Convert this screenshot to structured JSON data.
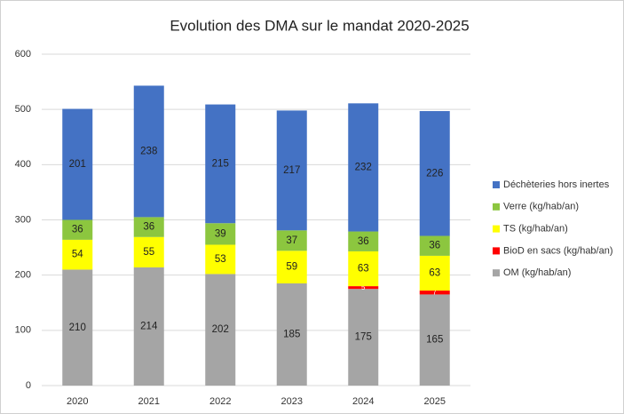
{
  "chart_data": {
    "type": "stacked_bar",
    "title": "Evolution des DMA sur le mandat 2020-2025",
    "categories": [
      "2020",
      "2021",
      "2022",
      "2023",
      "2024",
      "2025"
    ],
    "series": [
      {
        "name": "OM (kg/hab/an)",
        "color": "#a5a5a5",
        "values": [
          210,
          214,
          202,
          185,
          175,
          165
        ]
      },
      {
        "name": "BioD en sacs (kg/hab/an)",
        "color": "#ff0000",
        "values": [
          null,
          null,
          null,
          null,
          5,
          7
        ]
      },
      {
        "name": "TS  (kg/hab/an)",
        "color": "#ffff00",
        "values": [
          54,
          55,
          53,
          59,
          63,
          63
        ]
      },
      {
        "name": "Verre  (kg/hab/an)",
        "color": "#8cc63f",
        "values": [
          36,
          36,
          39,
          37,
          36,
          36
        ]
      },
      {
        "name": "Déchèteries hors inertes",
        "color": "#4472c4",
        "values": [
          201,
          238,
          215,
          217,
          232,
          226
        ]
      }
    ],
    "ylim": [
      0,
      600
    ],
    "yticks": [
      0,
      100,
      200,
      300,
      400,
      500,
      600
    ],
    "grid": true,
    "legend": "right"
  }
}
